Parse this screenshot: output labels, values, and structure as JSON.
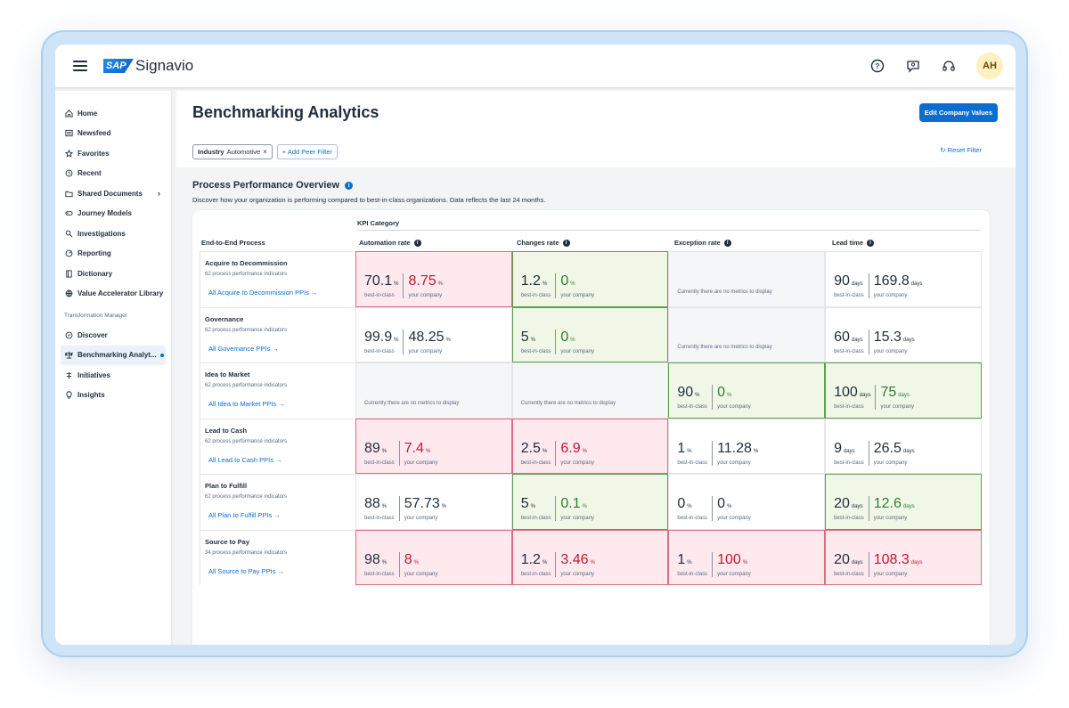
{
  "shell": {
    "logo_text": "SAP",
    "brand": "Signavio",
    "avatar": "AH"
  },
  "sidebar": {
    "items": [
      {
        "label": "Home",
        "icon": "home-icon"
      },
      {
        "label": "Newsfeed",
        "icon": "newsfeed-icon"
      },
      {
        "label": "Favorites",
        "icon": "star-icon"
      },
      {
        "label": "Recent",
        "icon": "history-icon"
      },
      {
        "label": "Shared Documents",
        "icon": "folder-icon"
      },
      {
        "label": "Journey Models",
        "icon": "journey-icon"
      },
      {
        "label": "Investigations",
        "icon": "investigation-icon"
      },
      {
        "label": "Reporting",
        "icon": "reporting-icon"
      },
      {
        "label": "Dictionary",
        "icon": "dictionary-icon"
      },
      {
        "label": "Value Accelerator Library",
        "icon": "globe-icon"
      }
    ],
    "section_label": "Transformation Manager",
    "section_items": [
      {
        "label": "Discover",
        "icon": "compass-icon"
      },
      {
        "label": "Benchmarking Analyt...",
        "icon": "scale-icon"
      },
      {
        "label": "Initiatives",
        "icon": "initiatives-icon"
      },
      {
        "label": "Insights",
        "icon": "lightbulb-icon"
      }
    ]
  },
  "page": {
    "title": "Benchmarking Analytics",
    "edit_button": "Edit Company Values",
    "filter_key": "Industry",
    "filter_value": "Automotive",
    "add_filter": "Add Peer Filter",
    "reset_filter": "Reset Filter",
    "section_title": "Process Performance Overview",
    "section_desc": "Discover how your organization is performing compared to best-in-class organizations. Data reflects the last 24 months."
  },
  "table": {
    "kpi_category": "KPI Category",
    "process_header": "End-to-End Process",
    "columns": [
      "Automation rate",
      "Changes rate",
      "Exception rate",
      "Lead time"
    ],
    "best_label": "best-in-class",
    "your_label": "your company",
    "no_metrics": "Currently there are no metrics to display",
    "rows": [
      {
        "name": "Acquire to Decommission",
        "sub": "62 process performance indicators",
        "link": "All Acquire to Decommission PPIs →",
        "cells": [
          {
            "status": "red",
            "best": "70.1",
            "your": "8.75",
            "unit": "%"
          },
          {
            "status": "green",
            "best": "1.2",
            "your": "0",
            "unit": "%"
          },
          {
            "status": "gray"
          },
          {
            "status": "white",
            "best": "90",
            "your": "169.8",
            "unit": "days"
          }
        ]
      },
      {
        "name": "Governance",
        "sub": "62 process performance indicators",
        "link": "All Governance PPIs →",
        "cells": [
          {
            "status": "white",
            "best": "99.9",
            "your": "48.25",
            "unit": "%"
          },
          {
            "status": "green",
            "best": "5",
            "your": "0",
            "unit": "%"
          },
          {
            "status": "gray"
          },
          {
            "status": "white",
            "best": "60",
            "your": "15.3",
            "unit": "days"
          }
        ]
      },
      {
        "name": "Idea to Market",
        "sub": "62 process performance indicators",
        "link": "All Idea to Market PPIs →",
        "cells": [
          {
            "status": "gray"
          },
          {
            "status": "gray"
          },
          {
            "status": "green",
            "best": "90",
            "your": "0",
            "unit": "%"
          },
          {
            "status": "green",
            "best": "100",
            "your": "75",
            "unit": "days"
          }
        ]
      },
      {
        "name": "Lead to Cash",
        "sub": "62 process performance indicators",
        "link": "All Lead to Cash PPIs →",
        "cells": [
          {
            "status": "red",
            "best": "89",
            "your": "7.4",
            "unit": "%"
          },
          {
            "status": "red",
            "best": "2.5",
            "your": "6.9",
            "unit": "%"
          },
          {
            "status": "white",
            "best": "1",
            "your": "11.28",
            "unit": "%"
          },
          {
            "status": "white",
            "best": "9",
            "your": "26.5",
            "unit": "days"
          }
        ]
      },
      {
        "name": "Plan to Fulfill",
        "sub": "62 process performance indicators",
        "link": "All Plan to Fulfill PPIs →",
        "cells": [
          {
            "status": "white",
            "best": "88",
            "your": "57.73",
            "unit": "%"
          },
          {
            "status": "green",
            "best": "5",
            "your": "0.1",
            "unit": "%"
          },
          {
            "status": "white",
            "best": "0",
            "your": "0",
            "unit": "%"
          },
          {
            "status": "green",
            "best": "20",
            "your": "12.6",
            "unit": "days"
          }
        ]
      },
      {
        "name": "Source to Pay",
        "sub": "34 process performance indicators",
        "link": "All Source to Pay PPIs →",
        "cells": [
          {
            "status": "red",
            "best": "98",
            "your": "8",
            "unit": "%"
          },
          {
            "status": "red",
            "best": "1.2",
            "your": "3.46",
            "unit": "%"
          },
          {
            "status": "red",
            "best": "1",
            "your": "100",
            "unit": "%"
          },
          {
            "status": "red",
            "best": "20",
            "your": "108.3",
            "unit": "days"
          }
        ]
      }
    ]
  },
  "colors": {
    "accent": "#0a6ed1",
    "bad": "#c0182e",
    "good": "#2e7d32",
    "bad_bg": "#fde9ee",
    "good_bg": "#f0f7e6"
  }
}
